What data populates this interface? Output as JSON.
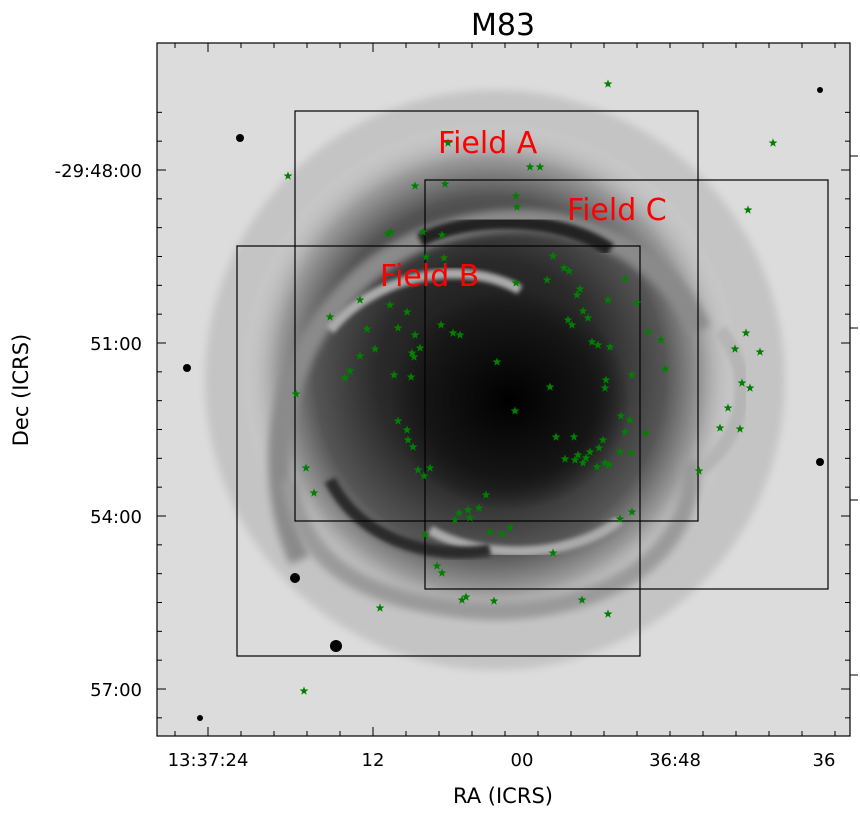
{
  "chart_data": {
    "type": "image",
    "title": "M83",
    "xlabel": "RA (ICRS)",
    "ylabel": "Dec (ICRS)",
    "x_ticks": [
      "13:37:24",
      "12",
      "00",
      "36:48",
      "36"
    ],
    "y_ticks": [
      "-29:48:00",
      "51:00",
      "54:00",
      "57:00"
    ],
    "fields": [
      {
        "name": "Field A"
      },
      {
        "name": "Field B"
      },
      {
        "name": "Field C"
      }
    ],
    "colors": {
      "field_label": "#ff0000",
      "frame": "#000000",
      "star_marker": "#008000",
      "galaxy_dark": "#1a1a1a",
      "sky": "#d9d9d9"
    }
  }
}
